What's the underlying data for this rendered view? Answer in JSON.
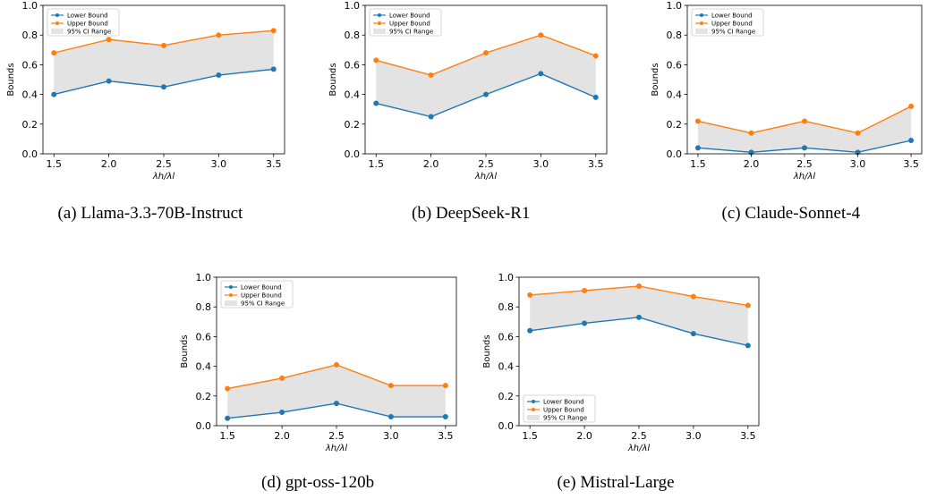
{
  "colors": {
    "lower": "#1f77b4",
    "upper": "#ff7f0e",
    "ci": "#e3e3e3"
  },
  "chart_data": [
    {
      "type": "line",
      "caption": "(a) Llama-3.3-70B-Instruct",
      "x": [
        1.5,
        2.0,
        2.5,
        3.0,
        3.5
      ],
      "xticks": [
        "1.5",
        "2.0",
        "2.5",
        "3.0",
        "3.5"
      ],
      "yticks": [
        "0.0",
        "0.2",
        "0.4",
        "0.6",
        "0.8",
        "1.0"
      ],
      "xlabel": "λh/λl",
      "ylabel": "Bounds",
      "ylim": [
        0,
        1
      ],
      "series": [
        {
          "name": "Lower Bound",
          "values": [
            0.4,
            0.49,
            0.45,
            0.53,
            0.57
          ]
        },
        {
          "name": "Upper Bound",
          "values": [
            0.68,
            0.77,
            0.73,
            0.8,
            0.83
          ]
        }
      ],
      "band_label": "95% CI Range",
      "legend": "upper-left"
    },
    {
      "type": "line",
      "caption": "(b) DeepSeek-R1",
      "x": [
        1.5,
        2.0,
        2.5,
        3.0,
        3.5
      ],
      "xticks": [
        "1.5",
        "2.0",
        "2.5",
        "3.0",
        "3.5"
      ],
      "yticks": [
        "0.0",
        "0.2",
        "0.4",
        "0.6",
        "0.8",
        "1.0"
      ],
      "xlabel": "λh/λl",
      "ylabel": "Bounds",
      "ylim": [
        0,
        1
      ],
      "series": [
        {
          "name": "Lower Bound",
          "values": [
            0.34,
            0.25,
            0.4,
            0.54,
            0.38
          ]
        },
        {
          "name": "Upper Bound",
          "values": [
            0.63,
            0.53,
            0.68,
            0.8,
            0.66
          ]
        }
      ],
      "band_label": "95% CI Range",
      "legend": "upper-left"
    },
    {
      "type": "line",
      "caption": "(c) Claude-Sonnet-4",
      "x": [
        1.5,
        2.0,
        2.5,
        3.0,
        3.5
      ],
      "xticks": [
        "1.5",
        "2.0",
        "2.5",
        "3.0",
        "3.5"
      ],
      "yticks": [
        "0.0",
        "0.2",
        "0.4",
        "0.6",
        "0.8",
        "1.0"
      ],
      "xlabel": "λh/λl",
      "ylabel": "Bounds",
      "ylim": [
        0,
        1
      ],
      "series": [
        {
          "name": "Lower Bound",
          "values": [
            0.04,
            0.01,
            0.04,
            0.01,
            0.09
          ]
        },
        {
          "name": "Upper Bound",
          "values": [
            0.22,
            0.14,
            0.22,
            0.14,
            0.32
          ]
        }
      ],
      "band_label": "95% CI Range",
      "legend": "upper-left"
    },
    {
      "type": "line",
      "caption": "(d) gpt-oss-120b",
      "x": [
        1.5,
        2.0,
        2.5,
        3.0,
        3.5
      ],
      "xticks": [
        "1.5",
        "2.0",
        "2.5",
        "3.0",
        "3.5"
      ],
      "yticks": [
        "0.0",
        "0.2",
        "0.4",
        "0.6",
        "0.8",
        "1.0"
      ],
      "xlabel": "λh/λl",
      "ylabel": "Bounds",
      "ylim": [
        0,
        1
      ],
      "series": [
        {
          "name": "Lower Bound",
          "values": [
            0.05,
            0.09,
            0.15,
            0.06,
            0.06
          ]
        },
        {
          "name": "Upper Bound",
          "values": [
            0.25,
            0.32,
            0.41,
            0.27,
            0.27
          ]
        }
      ],
      "band_label": "95% CI Range",
      "legend": "upper-left"
    },
    {
      "type": "line",
      "caption": "(e) Mistral-Large",
      "x": [
        1.5,
        2.0,
        2.5,
        3.0,
        3.5
      ],
      "xticks": [
        "1.5",
        "2.0",
        "2.5",
        "3.0",
        "3.5"
      ],
      "yticks": [
        "0.0",
        "0.2",
        "0.4",
        "0.6",
        "0.8",
        "1.0"
      ],
      "xlabel": "λh/λl",
      "ylabel": "Bounds",
      "ylim": [
        0,
        1
      ],
      "series": [
        {
          "name": "Lower Bound",
          "values": [
            0.64,
            0.69,
            0.73,
            0.62,
            0.54
          ]
        },
        {
          "name": "Upper Bound",
          "values": [
            0.88,
            0.91,
            0.94,
            0.87,
            0.81
          ]
        }
      ],
      "band_label": "95% CI Range",
      "legend": "lower-left"
    }
  ]
}
